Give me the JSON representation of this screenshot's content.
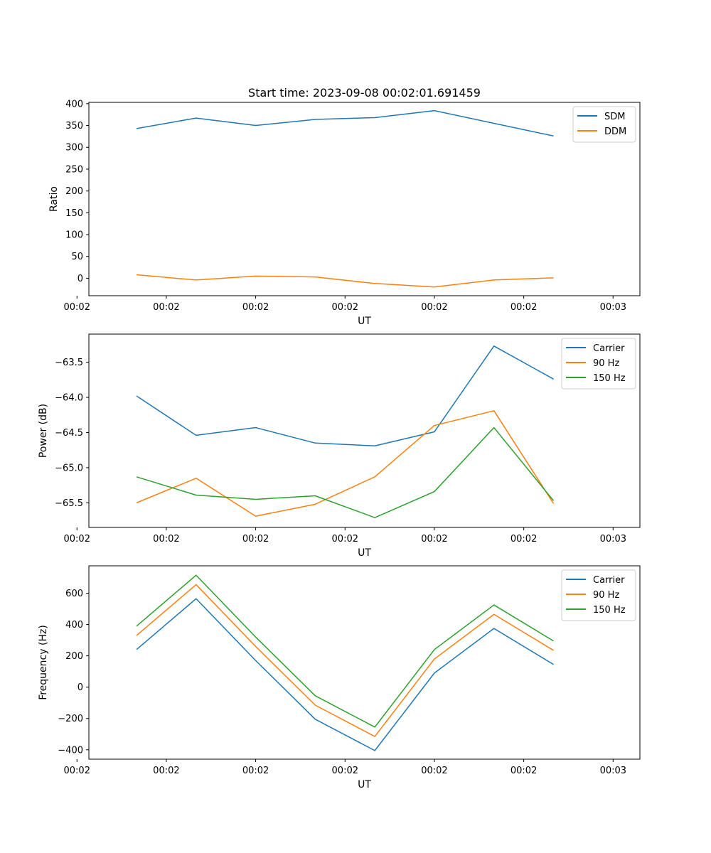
{
  "chart_data": [
    {
      "type": "line",
      "title": "Start time: 2023-09-08 00:02:01.691459",
      "xlabel": "UT",
      "ylabel": "Ratio",
      "x": [
        1,
        2,
        3,
        4,
        5,
        6,
        7,
        8
      ],
      "xlim": [
        0.2,
        9.45
      ],
      "xticks": [
        0,
        1.5,
        3,
        4.5,
        6,
        7.5,
        9
      ],
      "xticklabels": [
        "00:02",
        "00:02",
        "00:02",
        "00:02",
        "00:02",
        "00:02",
        "00:03"
      ],
      "ylim": [
        -40,
        403
      ],
      "yticks": [
        0,
        50,
        100,
        150,
        200,
        250,
        300,
        350,
        400
      ],
      "yticklabels": [
        "0",
        "50",
        "100",
        "150",
        "200",
        "250",
        "300",
        "350",
        "400"
      ],
      "legend_position": "top-right",
      "series": [
        {
          "name": "SDM",
          "color": "#1f77b4",
          "values": [
            343,
            367,
            350,
            364,
            368,
            384,
            355,
            326
          ]
        },
        {
          "name": "DDM",
          "color": "#ff7f0e",
          "values": [
            8,
            -4,
            5,
            3,
            -12,
            -20,
            -4,
            1
          ]
        }
      ]
    },
    {
      "type": "line",
      "title": "",
      "xlabel": "UT",
      "ylabel": "Power (dB)",
      "x": [
        1,
        2,
        3,
        4,
        5,
        6,
        7,
        8
      ],
      "xlim": [
        0.2,
        9.45
      ],
      "xticks": [
        0,
        1.5,
        3,
        4.5,
        6,
        7.5,
        9
      ],
      "xticklabels": [
        "00:02",
        "00:02",
        "00:02",
        "00:02",
        "00:02",
        "00:02",
        "00:03"
      ],
      "ylim": [
        -65.85,
        -63.1
      ],
      "yticks": [
        -65.5,
        -65.0,
        -64.5,
        -64.0,
        -63.5
      ],
      "yticklabels": [
        "−65.5",
        "−65.0",
        "−64.5",
        "−64.0",
        "−63.5"
      ],
      "legend_position": "top-right",
      "series": [
        {
          "name": "Carrier",
          "color": "#1f77b4",
          "values": [
            -63.98,
            -64.54,
            -64.43,
            -64.65,
            -64.69,
            -64.49,
            -63.27,
            -63.74
          ]
        },
        {
          "name": "90 Hz",
          "color": "#ff7f0e",
          "values": [
            -65.5,
            -65.15,
            -65.69,
            -65.52,
            -65.13,
            -64.4,
            -64.19,
            -65.51
          ]
        },
        {
          "name": "150 Hz",
          "color": "#2ca02c",
          "values": [
            -65.13,
            -65.39,
            -65.45,
            -65.4,
            -65.71,
            -65.34,
            -64.43,
            -65.47
          ]
        }
      ]
    },
    {
      "type": "line",
      "title": "",
      "xlabel": "UT",
      "ylabel": "Frequency (Hz)",
      "x": [
        1,
        2,
        3,
        4,
        5,
        6,
        7,
        8
      ],
      "xlim": [
        0.2,
        9.45
      ],
      "xticks": [
        0,
        1.5,
        3,
        4.5,
        6,
        7.5,
        9
      ],
      "xticklabels": [
        "00:02",
        "00:02",
        "00:02",
        "00:02",
        "00:02",
        "00:02",
        "00:03"
      ],
      "ylim": [
        -460,
        775
      ],
      "yticks": [
        -400,
        -200,
        0,
        200,
        400,
        600
      ],
      "yticklabels": [
        "−400",
        "−200",
        "0",
        "200",
        "400",
        "600"
      ],
      "legend_position": "top-right",
      "series": [
        {
          "name": "Carrier",
          "color": "#1f77b4",
          "values": [
            240,
            565,
            170,
            -205,
            -405,
            90,
            375,
            145
          ]
        },
        {
          "name": "90 Hz",
          "color": "#ff7f0e",
          "values": [
            330,
            655,
            260,
            -115,
            -315,
            180,
            465,
            235
          ]
        },
        {
          "name": "150 Hz",
          "color": "#2ca02c",
          "values": [
            390,
            715,
            320,
            -55,
            -255,
            240,
            525,
            295
          ]
        }
      ]
    }
  ]
}
